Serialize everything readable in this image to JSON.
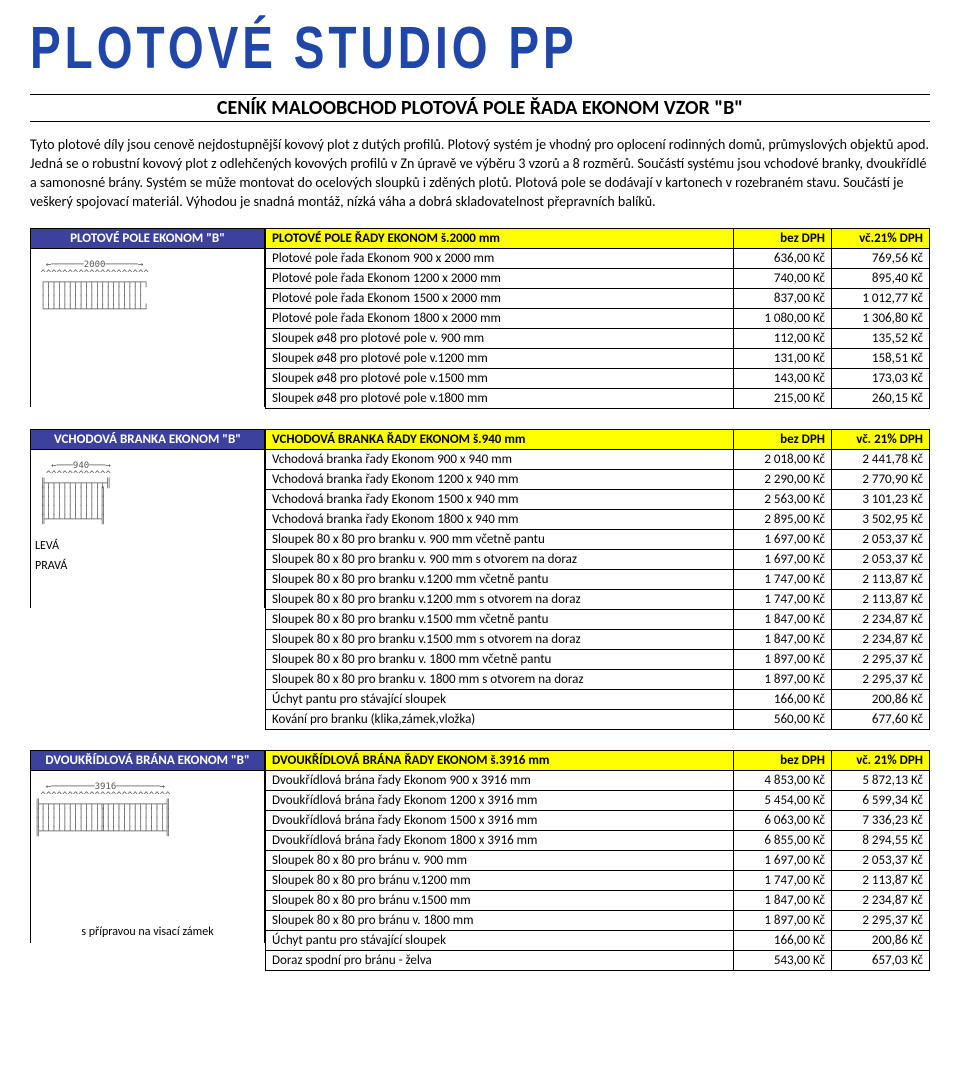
{
  "logo": "PLOTOVÉ STUDIO PP",
  "title": "CENÍK MALOOBCHOD PLOTOVÁ POLE ŘADA EKONOM VZOR \"B\"",
  "intro": "Tyto plotové díly jsou cenově nejdostupnější kovový plot z dutých profilů. Plotový systém je vhodný pro oplocení rodinných domů, průmyslových objektů apod. Jedná se o robustní kovový plot z odlehčených kovových profilů v Zn úpravě ve výběru 3 vzorů a 8 rozměrů. Součástí systému jsou vchodové branky, dvoukřídlé a samonosné brány. Systém se může montovat do ocelových sloupků i zděných plotů. Plotová pole se dodávají v kartonech v rozebraném stavu. Součástí je veškerý spojovací materiál. Výhodou je snadná montáž, nízká váha a dobrá skladovatelnost přepravních balíků.",
  "col_bez": "bez DPH",
  "col_vc_a": "vč.21% DPH",
  "col_vc_b": "vč. 21% DPH",
  "sections": [
    {
      "label": "PLOTOVÉ POLE EKONOM \"B\"",
      "dim": "2000",
      "header": "PLOTOVÉ POLE ŘADY EKONOM š.2000 mm",
      "vc_col": "vč.21% DPH",
      "rows": [
        {
          "d": "Plotové pole řada Ekonom 900 x 2000 mm",
          "p1": "636,00 Kč",
          "p2": "769,56 Kč"
        },
        {
          "d": "Plotové pole řada Ekonom 1200 x 2000 mm",
          "p1": "740,00 Kč",
          "p2": "895,40 Kč"
        },
        {
          "d": "Plotové pole řada Ekonom 1500 x 2000 mm",
          "p1": "837,00 Kč",
          "p2": "1 012,77 Kč"
        },
        {
          "d": "Plotové pole řada Ekonom 1800 x 2000 mm",
          "p1": "1 080,00 Kč",
          "p2": "1 306,80 Kč"
        },
        {
          "d": "Sloupek ø48 pro plotové pole v. 900 mm",
          "p1": "112,00 Kč",
          "p2": "135,52 Kč"
        },
        {
          "d": "Sloupek ø48 pro plotové pole v.1200 mm",
          "p1": "131,00 Kč",
          "p2": "158,51 Kč"
        },
        {
          "d": "Sloupek ø48 pro plotové pole v.1500 mm",
          "p1": "143,00 Kč",
          "p2": "173,03 Kč"
        },
        {
          "d": "Sloupek ø48 pro plotové pole v.1800 mm",
          "p1": "215,00 Kč",
          "p2": "260,15 Kč"
        }
      ],
      "ascii": "  ←──────2000──────→\n ^^^^^^^^^^^^^^^^^^^^\n ┌┬┬┬┬┬┬┬┬┬┬┬┬┬┬┬┬┬┬┐\n │││││││││││││││││││ \n │││││││││││││││││││ \n └┴┴┴┴┴┴┴┴┴┴┴┴┴┴┴┴┴┴┘"
    },
    {
      "label": "VCHODOVÁ BRANKA EKONOM \"B\"",
      "dim": "940",
      "side1": "LEVÁ",
      "side2": "PRAVÁ",
      "header": "VCHODOVÁ BRANKA ŘADY EKONOM š.940 mm",
      "vc_col": "vč. 21% DPH",
      "rows": [
        {
          "d": "Vchodová branka řady Ekonom 900 x 940 mm",
          "p1": "2 018,00 Kč",
          "p2": "2 441,78 Kč"
        },
        {
          "d": "Vchodová branka řady Ekonom 1200 x 940 mm",
          "p1": "2 290,00 Kč",
          "p2": "2 770,90 Kč"
        },
        {
          "d": "Vchodová branka řady Ekonom 1500 x 940 mm",
          "p1": "2 563,00 Kč",
          "p2": "3 101,23 Kč"
        },
        {
          "d": "Vchodová branka řady Ekonom 1800 x 940 mm",
          "p1": "2 895,00 Kč",
          "p2": "3 502,95 Kč"
        },
        {
          "d": "Sloupek 80 x 80 pro branku v. 900 mm včetně pantu",
          "p1": "1 697,00 Kč",
          "p2": "2 053,37 Kč"
        },
        {
          "d": "Sloupek 80 x 80 pro branku v. 900 mm s otvorem na doraz",
          "p1": "1 697,00 Kč",
          "p2": "2 053,37 Kč"
        },
        {
          "d": "Sloupek 80 x 80 pro branku v.1200 mm včetně pantu",
          "p1": "1 747,00 Kč",
          "p2": "2 113,87 Kč"
        },
        {
          "d": "Sloupek 80 x 80 pro branku v.1200 mm s otvorem na doraz",
          "p1": "1 747,00 Kč",
          "p2": "2 113,87 Kč"
        },
        {
          "d": "Sloupek 80 x 80 pro branku v.1500 mm včetně pantu",
          "p1": "1 847,00 Kč",
          "p2": "2 234,87 Kč"
        },
        {
          "d": "Sloupek 80 x 80 pro branku v.1500 mm s otvorem na doraz",
          "p1": "1 847,00 Kč",
          "p2": "2 234,87 Kč"
        },
        {
          "d": "Sloupek 80 x 80 pro branku v. 1800 mm včetně pantu",
          "p1": "1 897,00 Kč",
          "p2": "2 295,37 Kč"
        },
        {
          "d": "Sloupek 80 x 80 pro branku v. 1800 mm s otvorem na doraz",
          "p1": "1 897,00 Kč",
          "p2": "2 295,37 Kč"
        },
        {
          "d": "Úchyt pantu pro stávající sloupek",
          "p1": "166,00 Kč",
          "p2": "200,86 Kč"
        },
        {
          "d": "Kování pro branku (klika,zámek,vložka)",
          "p1": "560,00 Kč",
          "p2": "677,60 Kč"
        }
      ],
      "ascii": "   ←───940───→\n  ^^^^^^^^^^^^\n ╟┬┬┬┬┬┬┬┬┬┬┬╢\n ║││││││││││║\n ║││││││││││║\n ║││││││││││║\n ╟┴┴┴┴┴┴┴┴┴┴╢"
    },
    {
      "label": "DVOUKŘÍDLOVÁ BRÁNA EKONOM \"B\"",
      "dim": "3916",
      "footer": "s přípravou na visací zámek",
      "header": "DVOUKŘÍDLOVÁ BRÁNA ŘADY EKONOM š.3916 mm",
      "vc_col": "vč. 21% DPH",
      "rows": [
        {
          "d": "Dvoukřídlová brána řady Ekonom 900 x 3916 mm",
          "p1": "4 853,00 Kč",
          "p2": "5 872,13 Kč"
        },
        {
          "d": "Dvoukřídlová brána řady Ekonom 1200 x 3916 mm",
          "p1": "5 454,00 Kč",
          "p2": "6 599,34 Kč"
        },
        {
          "d": "Dvoukřídlová brána řady Ekonom 1500 x 3916 mm",
          "p1": "6 063,00 Kč",
          "p2": "7 336,23 Kč"
        },
        {
          "d": "Dvoukřídlová brána řady Ekonom 1800 x 3916 mm",
          "p1": "6 855,00 Kč",
          "p2": "8 294,55 Kč"
        },
        {
          "d": "Sloupek 80 x 80 pro bránu v. 900 mm",
          "p1": "1 697,00 Kč",
          "p2": "2 053,37 Kč"
        },
        {
          "d": "Sloupek 80 x 80 pro bránu v.1200 mm",
          "p1": "1 747,00 Kč",
          "p2": "2 113,87 Kč"
        },
        {
          "d": "Sloupek 80 x 80 pro bránu v.1500 mm",
          "p1": "1 847,00 Kč",
          "p2": "2 234,87 Kč"
        },
        {
          "d": "Sloupek 80 x 80 pro bránu v. 1800 mm",
          "p1": "1 897,00 Kč",
          "p2": "2 295,37 Kč"
        },
        {
          "d": "Úchyt pantu pro stávající sloupek",
          "p1": "166,00 Kč",
          "p2": "200,86 Kč"
        },
        {
          "d": "Doraz spodní pro bránu - želva",
          "p1": "543,00 Kč",
          "p2": "657,03 Kč"
        }
      ],
      "ascii": "  ←────────3916────────→\n ^^^^^^^^^^^^^^^^^^^^^^^^\n╟┬┬┬┬┬┬┬┬┬┬┬╥┬┬┬┬┬┬┬┬┬┬┬╢\n║│││││││││││║│││││││││││║\n║│││││││││││║│││││││││││║\n╟┴┴┴┴┴┴┴┴┴┴┴╨┴┴┴┴┴┴┴┴┴┴┴╢"
    }
  ]
}
